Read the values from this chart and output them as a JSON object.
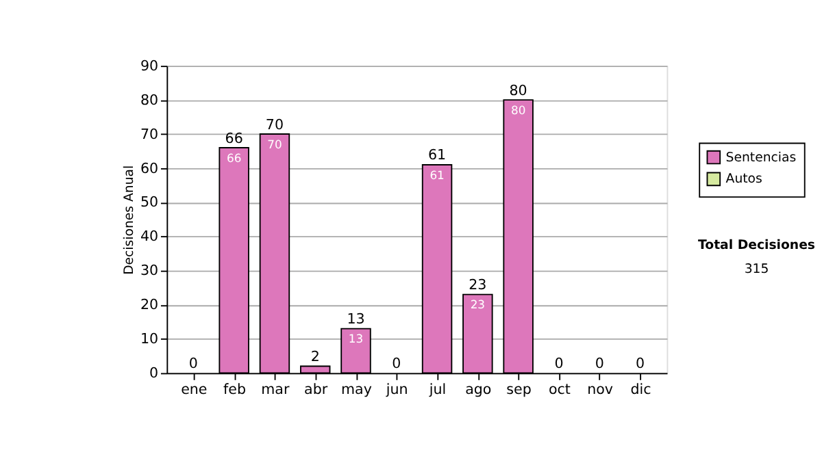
{
  "chart_data": {
    "type": "bar",
    "ylabel": "Decisiones Anual",
    "categories": [
      "ene",
      "feb",
      "mar",
      "abr",
      "may",
      "jun",
      "jul",
      "ago",
      "sep",
      "oct",
      "nov",
      "dic"
    ],
    "stacked": true,
    "series": [
      {
        "name": "Sentencias",
        "color": "#dd77bb",
        "values": [
          0,
          66,
          70,
          2,
          13,
          0,
          61,
          23,
          80,
          0,
          0,
          0
        ],
        "value_labels": [
          null,
          "66",
          "70",
          null,
          "13",
          null,
          "61",
          "23",
          "80",
          null,
          null,
          null
        ]
      },
      {
        "name": "Autos",
        "color": "#d6eaa0",
        "values": [
          0,
          0,
          0,
          0,
          0,
          0,
          0,
          0,
          0,
          0,
          0,
          0
        ]
      }
    ],
    "totals": [
      "0",
      "66",
      "70",
      "2",
      "13",
      "0",
      "61",
      "23",
      "80",
      "0",
      "0",
      "0"
    ],
    "ylim": [
      0,
      90
    ],
    "yticks": [
      0,
      10,
      20,
      30,
      40,
      50,
      60,
      70,
      80,
      90
    ],
    "grid": "y",
    "legend": "right",
    "annotations": [
      "Total Decisiones",
      "315"
    ]
  }
}
